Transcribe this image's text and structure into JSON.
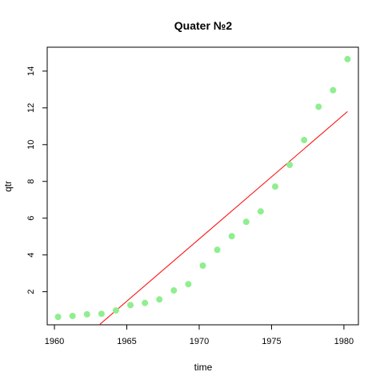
{
  "chart_data": {
    "type": "scatter",
    "title": "Quater №2",
    "xlabel": "time",
    "ylabel": "qtr",
    "xlim": [
      1959.5,
      1981
    ],
    "ylim": [
      0.2,
      15.3
    ],
    "xticks": [
      1960,
      1965,
      1970,
      1975,
      1980
    ],
    "yticks": [
      2,
      4,
      6,
      8,
      10,
      12,
      14
    ],
    "grid": false,
    "points": {
      "color": "#90EE90",
      "x": [
        1960.25,
        1961.25,
        1962.25,
        1963.25,
        1964.25,
        1965.25,
        1966.25,
        1967.25,
        1968.25,
        1969.25,
        1970.25,
        1971.25,
        1972.25,
        1973.25,
        1974.25,
        1975.25,
        1976.25,
        1977.25,
        1978.25,
        1979.25,
        1980.25
      ],
      "y": [
        0.63,
        0.68,
        0.77,
        0.8,
        0.98,
        1.27,
        1.39,
        1.58,
        2.07,
        2.41,
        3.42,
        4.28,
        5.02,
        5.8,
        6.37,
        7.72,
        8.9,
        10.25,
        12.06,
        12.96,
        14.65
      ]
    },
    "trend_line": {
      "color": "#FF0000",
      "x": [
        1963.1,
        1980.25
      ],
      "y": [
        0.2,
        11.8
      ]
    }
  }
}
